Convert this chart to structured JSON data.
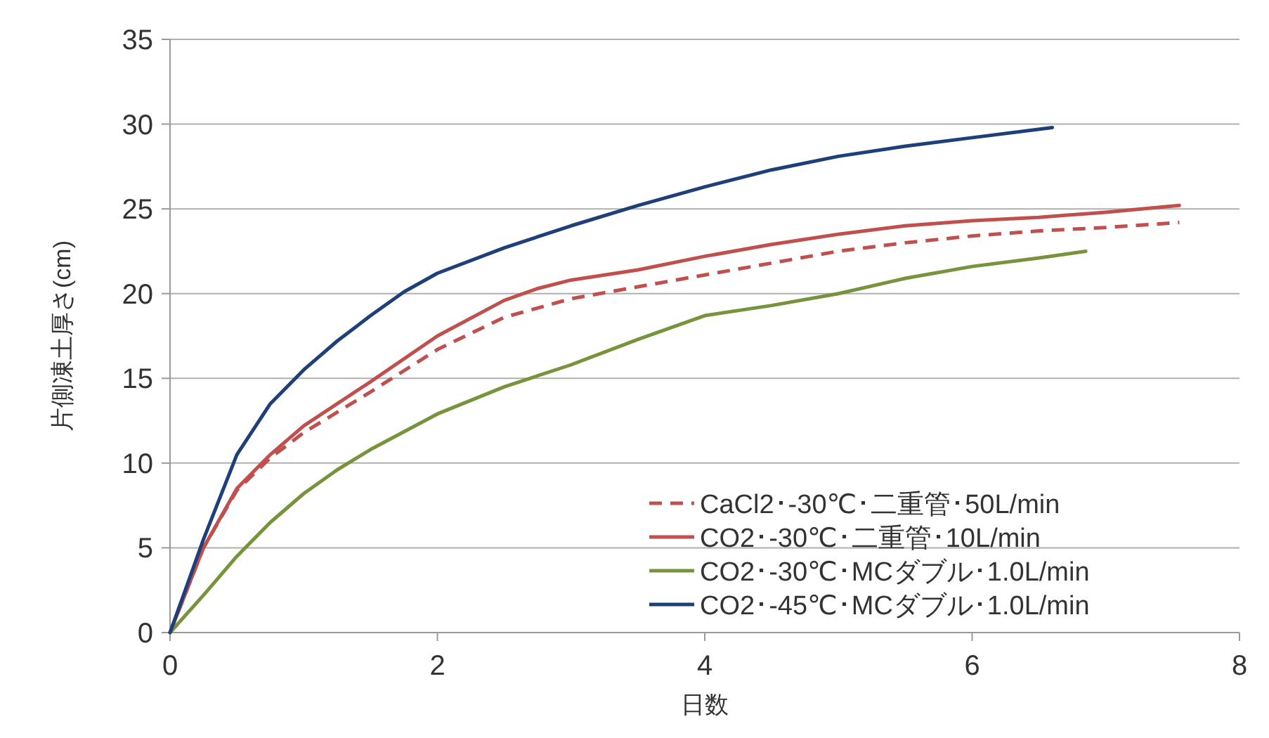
{
  "chart_data": {
    "type": "line",
    "xlabel": "日数",
    "ylabel": "片側凍土厚さ(cm)",
    "xlim": [
      0,
      8
    ],
    "ylim": [
      0,
      35
    ],
    "xticks": [
      0,
      2,
      4,
      6,
      8
    ],
    "yticks": [
      0,
      5,
      10,
      15,
      20,
      25,
      30,
      35
    ],
    "grid": "y",
    "legend": "bottom right",
    "marker": "none",
    "series": [
      {
        "name": "CaCl2･-30℃･二重管･50L/min",
        "color": "#c0504d",
        "line_style": "dashed",
        "x": [
          0,
          0.25,
          0.5,
          0.75,
          1,
          1.5,
          2,
          2.5,
          3,
          3.5,
          4,
          4.5,
          5,
          5.5,
          6,
          6.5,
          7,
          7.55
        ],
        "values": [
          0,
          5,
          8.4,
          10.3,
          11.8,
          14.2,
          16.7,
          18.6,
          19.7,
          20.4,
          21.1,
          21.8,
          22.5,
          23,
          23.4,
          23.7,
          23.9,
          24.2
        ]
      },
      {
        "name": "CO2･-30℃･二重管･10L/min",
        "color": "#c0504d",
        "line_style": "solid",
        "x": [
          0,
          0.25,
          0.5,
          0.75,
          1,
          1.5,
          2,
          2.5,
          2.75,
          3,
          3.5,
          4,
          4.5,
          5,
          5.5,
          6,
          6.5,
          7,
          7.55
        ],
        "values": [
          0,
          5,
          8.5,
          10.5,
          12.2,
          14.8,
          17.5,
          19.6,
          20.3,
          20.8,
          21.4,
          22.2,
          22.9,
          23.5,
          24,
          24.3,
          24.5,
          24.8,
          25.2
        ]
      },
      {
        "name": "CO2･-30℃･MCダブル･1.0L/min",
        "color": "#77933c",
        "line_style": "solid",
        "x": [
          0,
          0.25,
          0.5,
          0.75,
          1,
          1.25,
          1.5,
          2,
          2.5,
          3,
          3.5,
          4,
          4.5,
          5,
          5.5,
          6,
          6.5,
          6.85
        ],
        "values": [
          0,
          2.2,
          4.5,
          6.5,
          8.2,
          9.6,
          10.8,
          12.9,
          14.5,
          15.8,
          17.3,
          18.7,
          19.3,
          20,
          20.9,
          21.6,
          22.1,
          22.5
        ]
      },
      {
        "name": "CO2･-45℃･MCダブル･1.0L/min",
        "color": "#1f3f7a",
        "line_style": "solid",
        "x": [
          0,
          0.25,
          0.5,
          0.75,
          1,
          1.25,
          1.5,
          1.75,
          2,
          2.5,
          3,
          3.5,
          4,
          4.5,
          5,
          5.5,
          6,
          6.6
        ],
        "values": [
          0,
          5.5,
          10.5,
          13.5,
          15.5,
          17.2,
          18.7,
          20.1,
          21.2,
          22.7,
          24,
          25.2,
          26.3,
          27.3,
          28.1,
          28.7,
          29.2,
          29.8
        ]
      }
    ]
  }
}
